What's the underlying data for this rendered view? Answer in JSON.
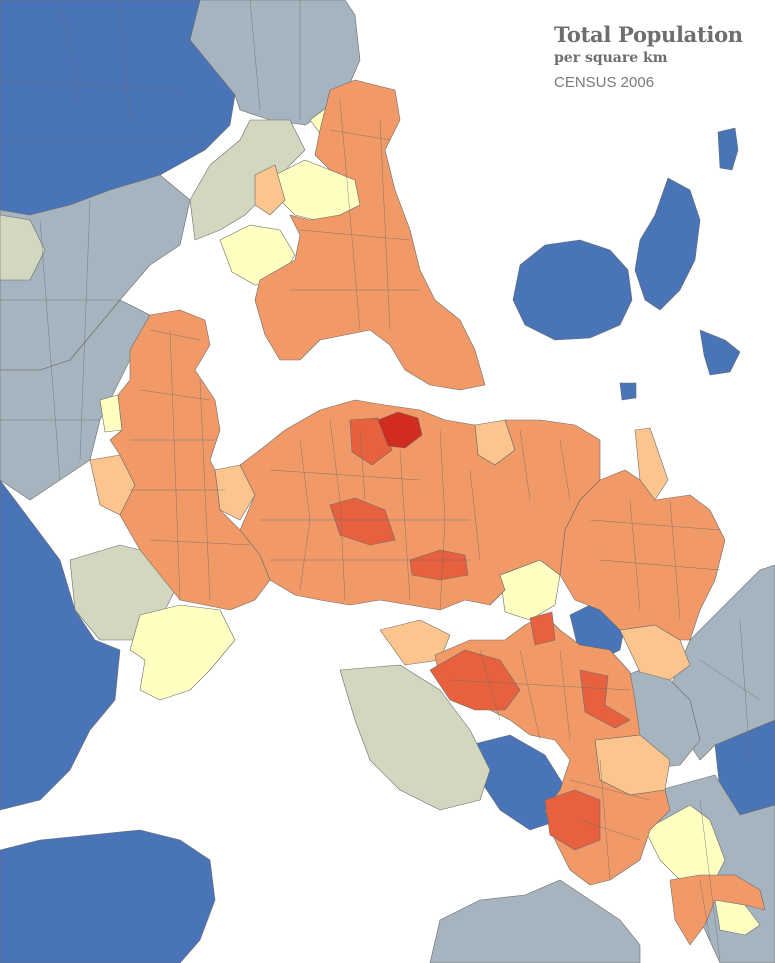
{
  "map": {
    "title": "Total Population",
    "subtitle": "per square km",
    "source": "CENSUS 2006"
  },
  "colors": {
    "water": "#ffffff",
    "very_low": "#4a74b8",
    "low": "#a6b4c0",
    "rural_green": "#d2d8c0",
    "pale_yellow": "#ffffc2",
    "light_orange": "#fcc58e",
    "orange": "#f19a67",
    "dark_orange": "#e7613f",
    "red": "#d22c1e",
    "border": "#6b6b6b"
  }
}
